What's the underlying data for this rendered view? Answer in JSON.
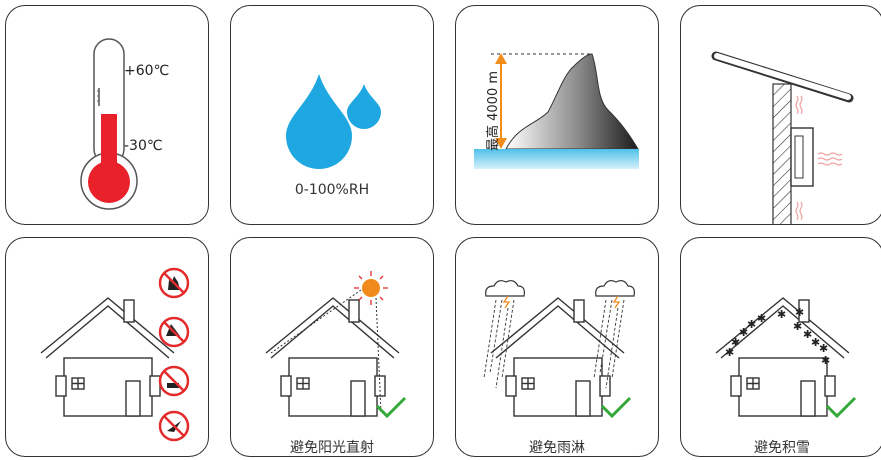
{
  "thermometer": {
    "max_label": "+60℃",
    "min_label": "-30℃"
  },
  "humidity": {
    "label": "0-100%RH"
  },
  "altitude": {
    "label": "最高 4000 m"
  },
  "avoid_sunlight": {
    "label": "避免阳光直射"
  },
  "avoid_rain": {
    "label": "避免雨淋"
  },
  "avoid_snow": {
    "label": "避免积雪"
  },
  "colors": {
    "thermo_red": "#e8212b",
    "water_blue": "#1ea7e1",
    "arrow_orange": "#f28c1a",
    "check_green": "#34a93a",
    "ground_blue": "#4fc1ea",
    "prohibit_red": "#e32b2b"
  }
}
